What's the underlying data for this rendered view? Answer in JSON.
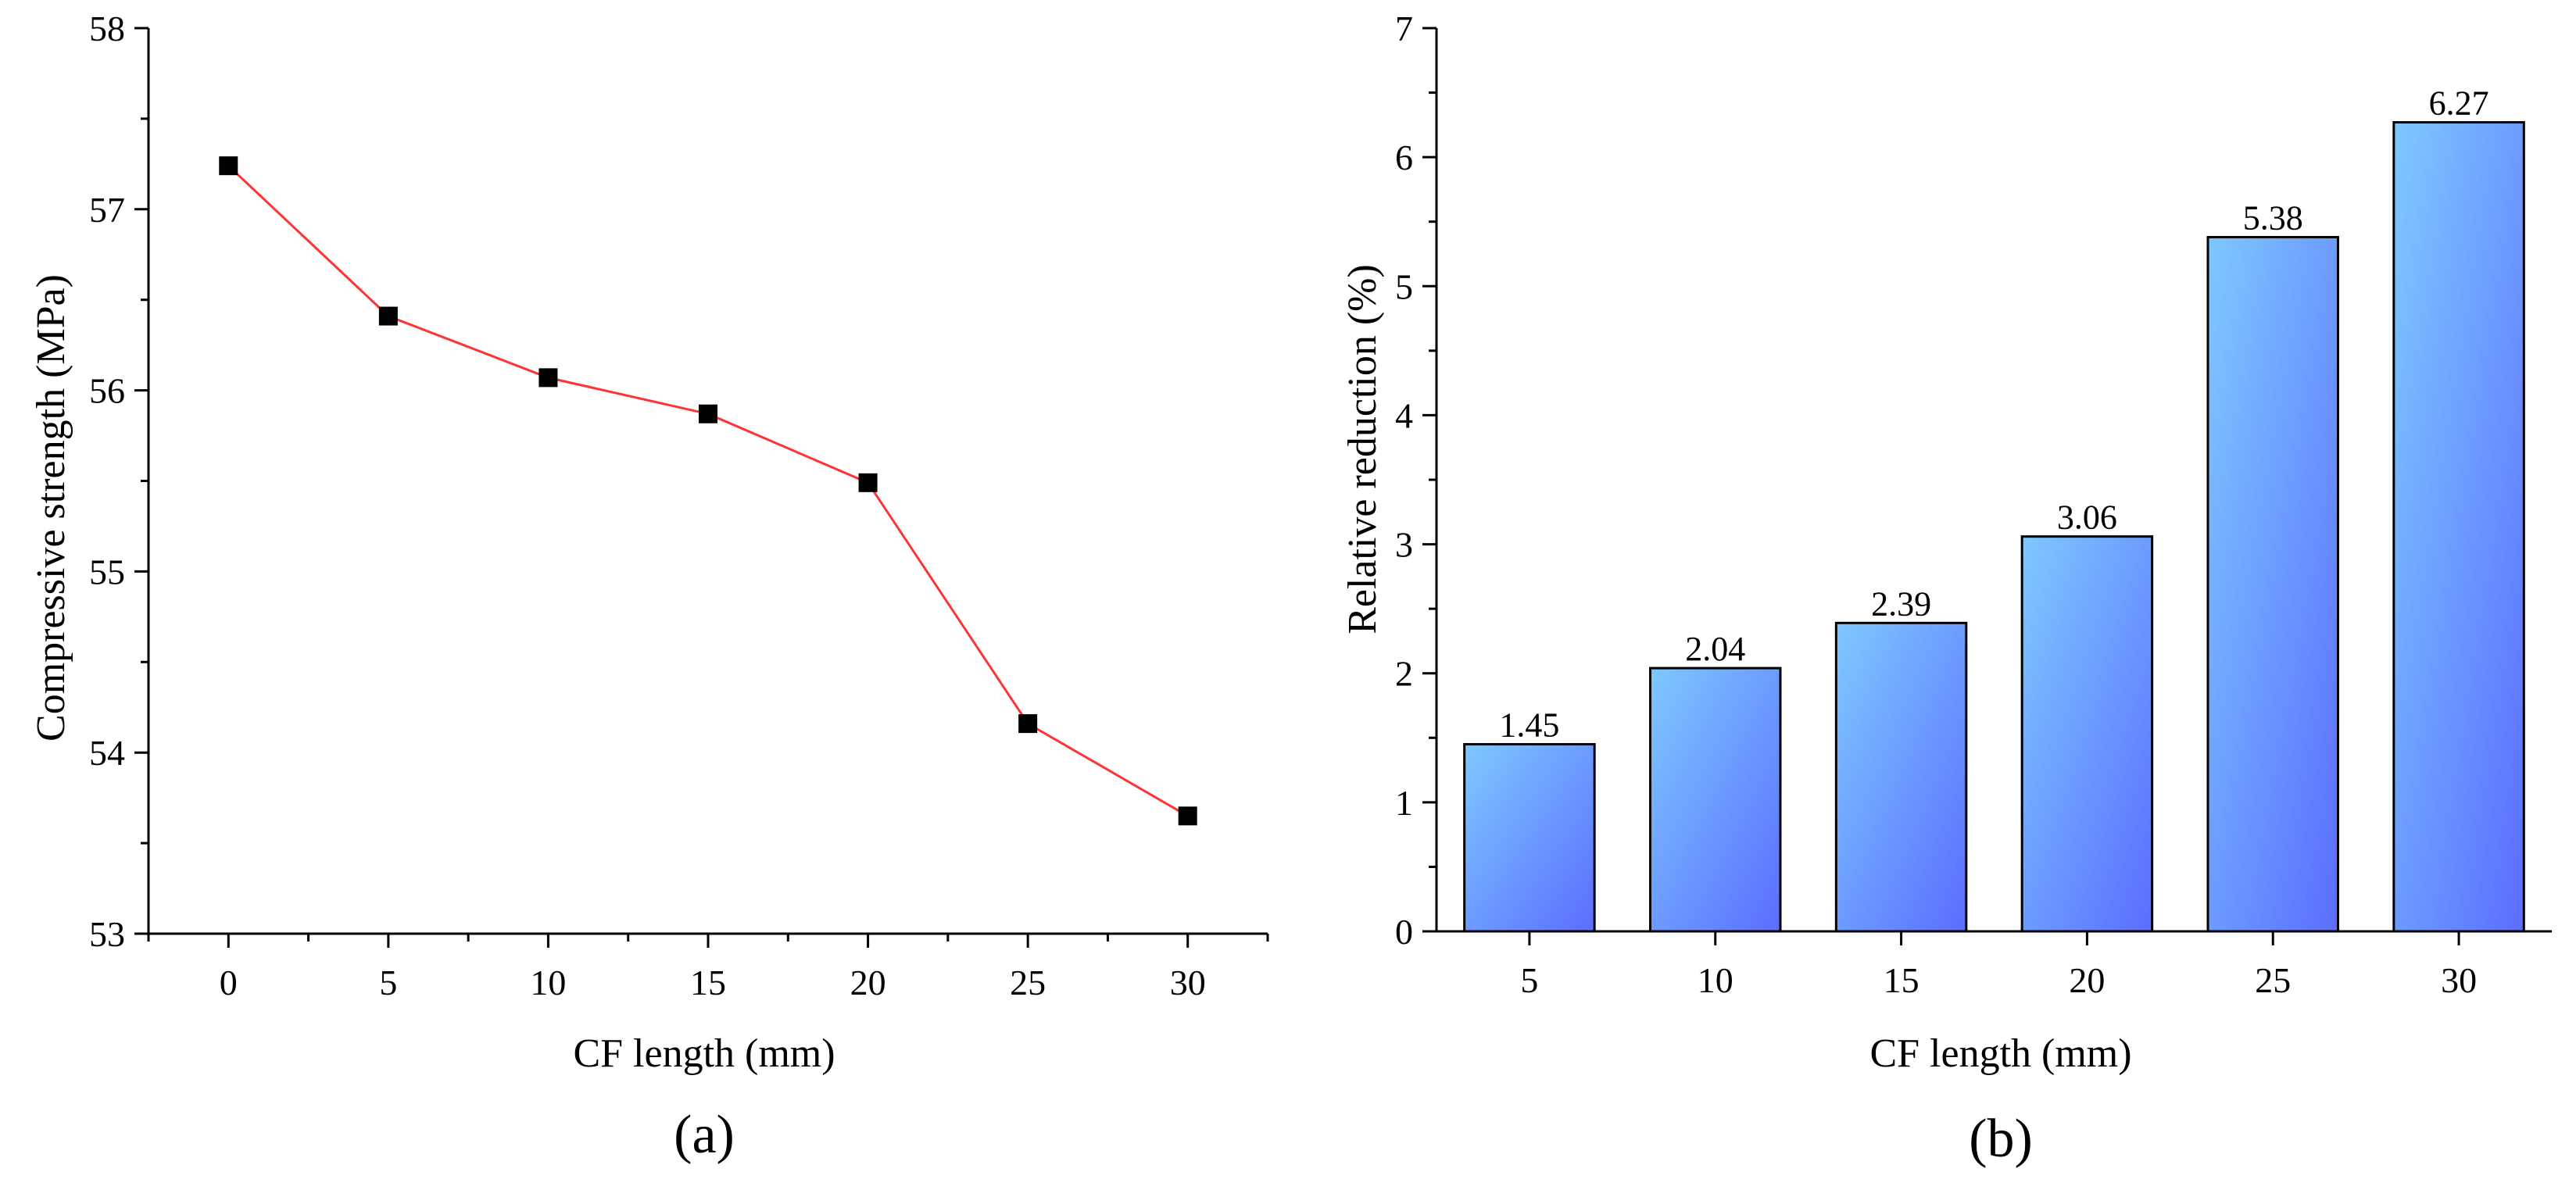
{
  "chart_data": [
    {
      "type": "line",
      "panel_label": "(a)",
      "xlabel": "CF length (mm)",
      "ylabel": "Compressive strength (MPa)",
      "x": [
        0,
        5,
        10,
        15,
        20,
        25,
        30
      ],
      "series": [
        {
          "values": [
            57.24,
            56.41,
            56.07,
            55.87,
            55.49,
            54.16,
            53.65
          ],
          "color": "#ff3333",
          "marker": "square",
          "marker_color": "#000000"
        }
      ],
      "xticks": [
        0,
        5,
        10,
        15,
        20,
        25,
        30
      ],
      "yticks": [
        53,
        54,
        55,
        56,
        57,
        58
      ],
      "xlim": [
        -2.5,
        32.5
      ],
      "ylim": [
        53,
        58
      ],
      "grid": false
    },
    {
      "type": "bar",
      "panel_label": "(b)",
      "xlabel": "CF length (mm)",
      "ylabel": "Relative reduction (%)",
      "categories": [
        "5",
        "10",
        "15",
        "20",
        "25",
        "30"
      ],
      "values": [
        1.45,
        2.04,
        2.39,
        3.06,
        5.38,
        6.27
      ],
      "data_labels": [
        "1.45",
        "2.04",
        "2.39",
        "3.06",
        "5.38",
        "6.27"
      ],
      "yticks": [
        0,
        1,
        2,
        3,
        4,
        5,
        6,
        7
      ],
      "ylim": [
        0,
        7
      ],
      "bar_gradient": [
        "#7ec8ff",
        "#5b6dff"
      ],
      "grid": false
    }
  ]
}
